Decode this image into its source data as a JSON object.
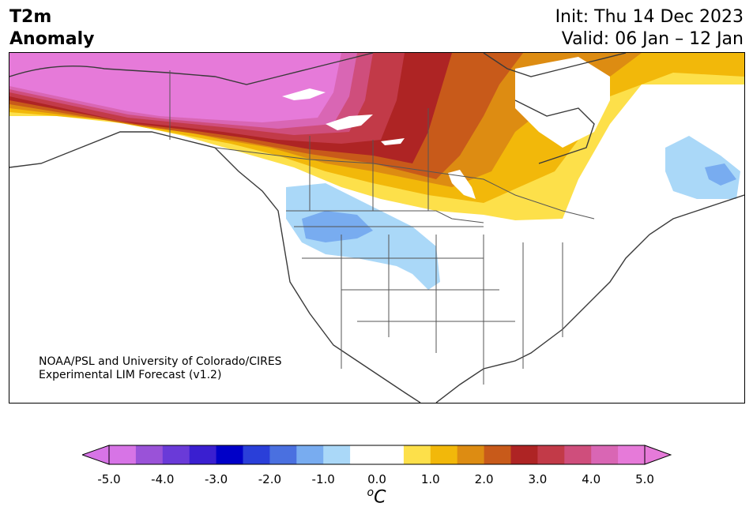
{
  "header": {
    "title_line1": "T2m",
    "title_line2": "Anomaly",
    "init_text": "Init: Thu 14 Dec 2023",
    "valid_text": "Valid: 06 Jan – 12 Jan"
  },
  "credit": {
    "line1": "NOAA/PSL and University of Colorado/CIRES",
    "line2": "Experimental LIM Forecast (v1.2)"
  },
  "colorbar": {
    "unit_base": "C",
    "unit_sup": "o",
    "tick_labels": [
      "-5.0",
      "-4.0",
      "-3.0",
      "-2.0",
      "-1.0",
      "0.0",
      "1.0",
      "2.0",
      "3.0",
      "4.0",
      "5.0"
    ],
    "low_extend_color": "#d774e6",
    "high_extend_color": "#e67ad9",
    "colors": [
      "#d774e6",
      "#9a52d8",
      "#6a3ad8",
      "#3a1fd0",
      "#0000c8",
      "#2a3fd9",
      "#4a70e0",
      "#78acf0",
      "#aad8f8",
      "#ffffff",
      "#ffffff",
      "#fde04a",
      "#f2b80a",
      "#dd8c12",
      "#c85a1a",
      "#ae2424",
      "#c23a48",
      "#cf4e7c",
      "#d966b4",
      "#e67ad9"
    ]
  }
}
